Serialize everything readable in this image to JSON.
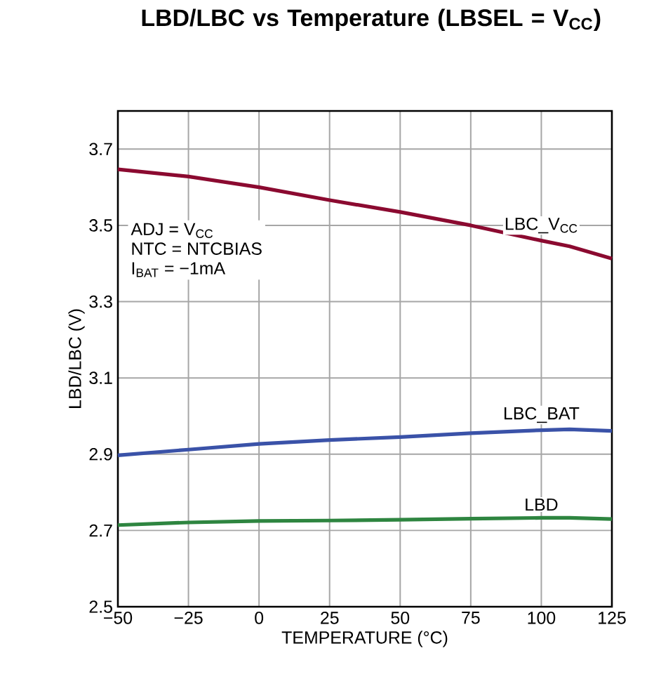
{
  "chart_data": {
    "type": "line",
    "title": "LBD/LBC vs Temperature (LBSEL = V$_{CC}$)",
    "xlabel": "TEMPERATURE (°C)",
    "ylabel": "LBD/LBC (V)",
    "annotations": [
      "ADJ = V$_{CC}$",
      "NTC = NTCBIAS",
      "I$_{BAT}$ = −1mA"
    ],
    "x": [
      -50,
      -25,
      0,
      25,
      50,
      75,
      100,
      110,
      125
    ],
    "series": [
      {
        "name": "LBC_V$_{CC}$",
        "color": "#8b0a30",
        "values": [
          3.647,
          3.628,
          3.6,
          3.566,
          3.535,
          3.5,
          3.46,
          3.445,
          3.413
        ]
      },
      {
        "name": "LBC_BAT",
        "color": "#3a52a8",
        "values": [
          2.897,
          2.912,
          2.927,
          2.937,
          2.945,
          2.955,
          2.963,
          2.965,
          2.961
        ]
      },
      {
        "name": "LBD",
        "color": "#2e8540",
        "values": [
          2.714,
          2.721,
          2.725,
          2.726,
          2.728,
          2.731,
          2.733,
          2.733,
          2.73
        ]
      }
    ],
    "xlim": [
      -50,
      125
    ],
    "ylim": [
      2.5,
      3.8
    ],
    "xticks": [
      {
        "value": -50,
        "label": "−50"
      },
      {
        "value": -25,
        "label": "−25"
      },
      0,
      25,
      50,
      75,
      100,
      125
    ],
    "yticks": [
      2.5,
      2.7,
      2.9,
      3.1,
      3.3,
      3.5,
      3.7
    ],
    "grid": true,
    "marker": "none"
  }
}
